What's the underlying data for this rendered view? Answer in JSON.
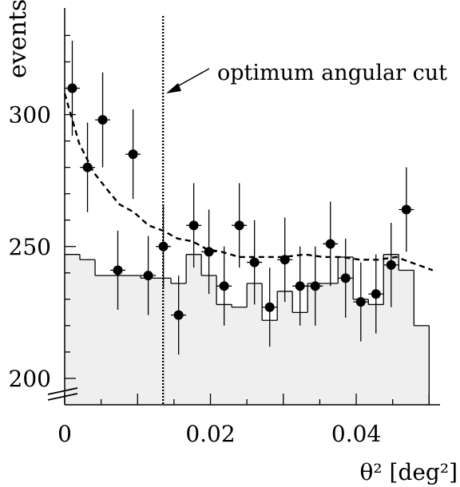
{
  "chart_data": {
    "type": "scatter",
    "xlabel": "θ² [deg²]",
    "ylabel": "events",
    "xlim": [
      0,
      0.0515
    ],
    "ylim": [
      190,
      338
    ],
    "axis_break_on_y": true,
    "x_ticks": [
      {
        "value": 0,
        "label": "0"
      },
      {
        "value": 0.02,
        "label": "0.02"
      },
      {
        "value": 0.04,
        "label": "0.04"
      }
    ],
    "y_ticks": [
      {
        "value": 200,
        "label": "200"
      },
      {
        "value": 250,
        "label": "250"
      },
      {
        "value": 300,
        "label": "300"
      }
    ],
    "annotation": {
      "text": "optimum angular cut",
      "points_to_x": 0.0135
    },
    "cut_line_x": 0.0135,
    "series": [
      {
        "kind": "points_with_errors",
        "x_halfwidth": 0.00104,
        "points": [
          {
            "x": 0.00104,
            "y": 310,
            "err": 18
          },
          {
            "x": 0.00313,
            "y": 280,
            "err": 17
          },
          {
            "x": 0.00521,
            "y": 298,
            "err": 18
          },
          {
            "x": 0.00729,
            "y": 241,
            "err": 15
          },
          {
            "x": 0.00938,
            "y": 285,
            "err": 17
          },
          {
            "x": 0.01146,
            "y": 239,
            "err": 15
          },
          {
            "x": 0.01354,
            "y": 250,
            "err": 16
          },
          {
            "x": 0.01563,
            "y": 224,
            "err": 15
          },
          {
            "x": 0.01771,
            "y": 258,
            "err": 16
          },
          {
            "x": 0.01979,
            "y": 248,
            "err": 16
          },
          {
            "x": 0.02188,
            "y": 235,
            "err": 15
          },
          {
            "x": 0.02396,
            "y": 258,
            "err": 16
          },
          {
            "x": 0.02604,
            "y": 244,
            "err": 16
          },
          {
            "x": 0.02813,
            "y": 227,
            "err": 15
          },
          {
            "x": 0.03021,
            "y": 245,
            "err": 16
          },
          {
            "x": 0.03229,
            "y": 235,
            "err": 15
          },
          {
            "x": 0.03438,
            "y": 235,
            "err": 15
          },
          {
            "x": 0.03646,
            "y": 251,
            "err": 16
          },
          {
            "x": 0.03854,
            "y": 238,
            "err": 15
          },
          {
            "x": 0.04063,
            "y": 229,
            "err": 15
          },
          {
            "x": 0.04271,
            "y": 232,
            "err": 15
          },
          {
            "x": 0.04479,
            "y": 243,
            "err": 16
          },
          {
            "x": 0.04688,
            "y": 264,
            "err": 16
          }
        ]
      },
      {
        "kind": "step_histogram",
        "bin_edges": [
          0,
          0.00208,
          0.00417,
          0.00625,
          0.00833,
          0.01042,
          0.0125,
          0.01458,
          0.01667,
          0.01875,
          0.02083,
          0.02292,
          0.025,
          0.02708,
          0.02917,
          0.03125,
          0.03333,
          0.03542,
          0.0375,
          0.03958,
          0.04167,
          0.04375,
          0.04583,
          0.04792,
          0.05
        ],
        "values": [
          247,
          245,
          239,
          239,
          239,
          238,
          238,
          236,
          247,
          239,
          228,
          227,
          236,
          222,
          233,
          225,
          236,
          236,
          246,
          230,
          228,
          247,
          241,
          220
        ]
      },
      {
        "kind": "dashed_curve",
        "points": [
          {
            "x": 0.0,
            "y": 308
          },
          {
            "x": 0.002,
            "y": 289
          },
          {
            "x": 0.004,
            "y": 278
          },
          {
            "x": 0.006,
            "y": 271
          },
          {
            "x": 0.0075,
            "y": 266
          },
          {
            "x": 0.0095,
            "y": 263
          },
          {
            "x": 0.0115,
            "y": 258
          },
          {
            "x": 0.0135,
            "y": 256
          },
          {
            "x": 0.0155,
            "y": 253
          },
          {
            "x": 0.0175,
            "y": 252
          },
          {
            "x": 0.0195,
            "y": 249
          },
          {
            "x": 0.0215,
            "y": 248
          },
          {
            "x": 0.024,
            "y": 246
          },
          {
            "x": 0.027,
            "y": 246
          },
          {
            "x": 0.03,
            "y": 246
          },
          {
            "x": 0.033,
            "y": 247
          },
          {
            "x": 0.0355,
            "y": 246
          },
          {
            "x": 0.038,
            "y": 246
          },
          {
            "x": 0.0405,
            "y": 245
          },
          {
            "x": 0.043,
            "y": 245
          },
          {
            "x": 0.0455,
            "y": 246
          },
          {
            "x": 0.0475,
            "y": 244
          },
          {
            "x": 0.0495,
            "y": 242
          },
          {
            "x": 0.0505,
            "y": 241
          }
        ]
      }
    ]
  }
}
